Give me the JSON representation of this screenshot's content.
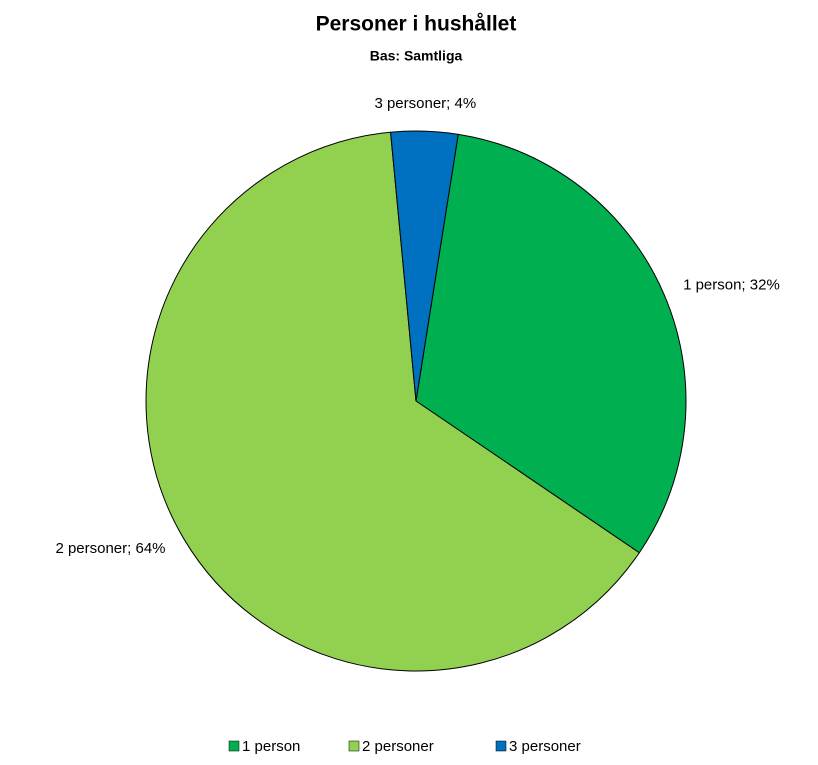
{
  "chart_data": {
    "type": "pie",
    "title": "Personer i hushållet",
    "subtitle": "Bas: Samtliga",
    "categories": [
      "1 person",
      "2 personer",
      "3 personer"
    ],
    "values": [
      32,
      64,
      4
    ],
    "value_labels": [
      "1 person; 32%",
      "2 personer; 64%",
      "3 personer; 4%"
    ],
    "colors": [
      "#00b050",
      "#92d050",
      "#0070c0"
    ],
    "legend": "bottom"
  }
}
